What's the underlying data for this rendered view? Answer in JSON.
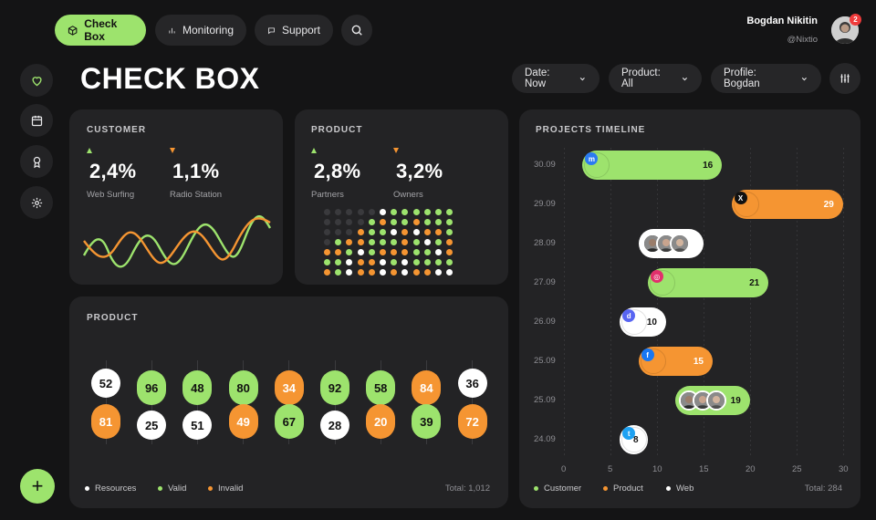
{
  "nav": {
    "tabs": [
      {
        "label": "Check Box",
        "icon": "cube-icon",
        "active": true
      },
      {
        "label": "Monitoring",
        "icon": "bar-chart-icon",
        "active": false
      },
      {
        "label": "Support",
        "icon": "chat-icon",
        "active": false
      }
    ],
    "search_icon": "search-icon"
  },
  "user": {
    "name": "Bogdan Nikitin",
    "handle": "@Nixtio",
    "notifications": "2"
  },
  "page_title": "CHECK BOX",
  "filters": [
    {
      "label": "Date: Now"
    },
    {
      "label": "Product: All"
    },
    {
      "label": "Profile: Bogdan"
    }
  ],
  "sidebar": [
    "heart-icon",
    "calendar-icon",
    "award-icon",
    "gear-icon"
  ],
  "fab": "+",
  "customer_card": {
    "title": "CUSTOMER",
    "stats": [
      {
        "value": "2,4%",
        "label": "Web Surfing",
        "trend": "up"
      },
      {
        "value": "1,1%",
        "label": "Radio Station",
        "trend": "down"
      }
    ]
  },
  "product_card": {
    "title": "PRODUCT",
    "stats": [
      {
        "value": "2,8%",
        "label": "Partners",
        "trend": "up"
      },
      {
        "value": "3,2%",
        "label": "Owners",
        "trend": "down"
      }
    ],
    "dot_matrix": [
      "kkkkkwgggggg",
      "kkkkgoggoggg",
      "kkkoggwowoog",
      "kgoogggogwgo",
      "oogwgoooggwo",
      "ggwoowgwgggg",
      "ogwoowowooww"
    ]
  },
  "product_bubbles": {
    "title": "PRODUCT",
    "columns": [
      {
        "top": {
          "v": "52",
          "c": "white"
        },
        "bottom": {
          "v": "81",
          "c": "orange"
        }
      },
      {
        "top": {
          "v": "96",
          "c": "green"
        },
        "bottom": {
          "v": "25",
          "c": "white"
        }
      },
      {
        "top": {
          "v": "48",
          "c": "green"
        },
        "bottom": {
          "v": "51",
          "c": "white"
        }
      },
      {
        "top": {
          "v": "80",
          "c": "green"
        },
        "bottom": {
          "v": "49",
          "c": "orange"
        }
      },
      {
        "top": {
          "v": "34",
          "c": "orange"
        },
        "bottom": {
          "v": "67",
          "c": "green"
        }
      },
      {
        "top": {
          "v": "92",
          "c": "green"
        },
        "bottom": {
          "v": "28",
          "c": "white"
        }
      },
      {
        "top": {
          "v": "58",
          "c": "green"
        },
        "bottom": {
          "v": "20",
          "c": "orange"
        }
      },
      {
        "top": {
          "v": "84",
          "c": "orange"
        },
        "bottom": {
          "v": "39",
          "c": "green"
        }
      },
      {
        "top": {
          "v": "36",
          "c": "white"
        },
        "bottom": {
          "v": "72",
          "c": "orange"
        }
      }
    ],
    "legend": [
      {
        "label": "Resources",
        "color": "#ffffff"
      },
      {
        "label": "Valid",
        "color": "#9de36d"
      },
      {
        "label": "Invalid",
        "color": "#f59532"
      }
    ],
    "total": "Total: 1,012"
  },
  "timeline": {
    "title": "PROJECTS TIMELINE",
    "rows": [
      {
        "date": "30.09",
        "start": 2,
        "value": 16,
        "label": "16",
        "color": "green",
        "icon": "messenger-icon"
      },
      {
        "date": "29.09",
        "start": 18,
        "value": 29,
        "label": "29",
        "color": "orange",
        "icon": "x-icon"
      },
      {
        "date": "28.09",
        "start": 8,
        "value": 14,
        "label": "",
        "color": "white",
        "icon": "avatars"
      },
      {
        "date": "27.09",
        "start": 9,
        "value": 21,
        "label": "21",
        "color": "green",
        "icon": "instagram-icon"
      },
      {
        "date": "26.09",
        "start": 6,
        "value": 10,
        "label": "10",
        "color": "white",
        "icon": "discord-icon"
      },
      {
        "date": "25.09",
        "start": 8,
        "value": 15,
        "label": "15",
        "color": "orange",
        "icon": "facebook-icon"
      },
      {
        "date": "25.09",
        "start": 12,
        "value": 19,
        "label": "19",
        "color": "green",
        "icon": "avatars"
      },
      {
        "date": "24.09",
        "start": 6,
        "value": 8,
        "label": "8",
        "color": "white",
        "icon": "twitter-icon"
      }
    ],
    "x_ticks": [
      "0",
      "5",
      "10",
      "15",
      "20",
      "25",
      "30"
    ],
    "legend": [
      {
        "label": "Customer",
        "color": "#9de36d"
      },
      {
        "label": "Product",
        "color": "#f59532"
      },
      {
        "label": "Web",
        "color": "#ffffff"
      }
    ],
    "total": "Total: 284"
  },
  "colors": {
    "green": "#9de36d",
    "orange": "#f59532",
    "white": "#ffffff",
    "card": "#232325",
    "bg": "#141415"
  }
}
